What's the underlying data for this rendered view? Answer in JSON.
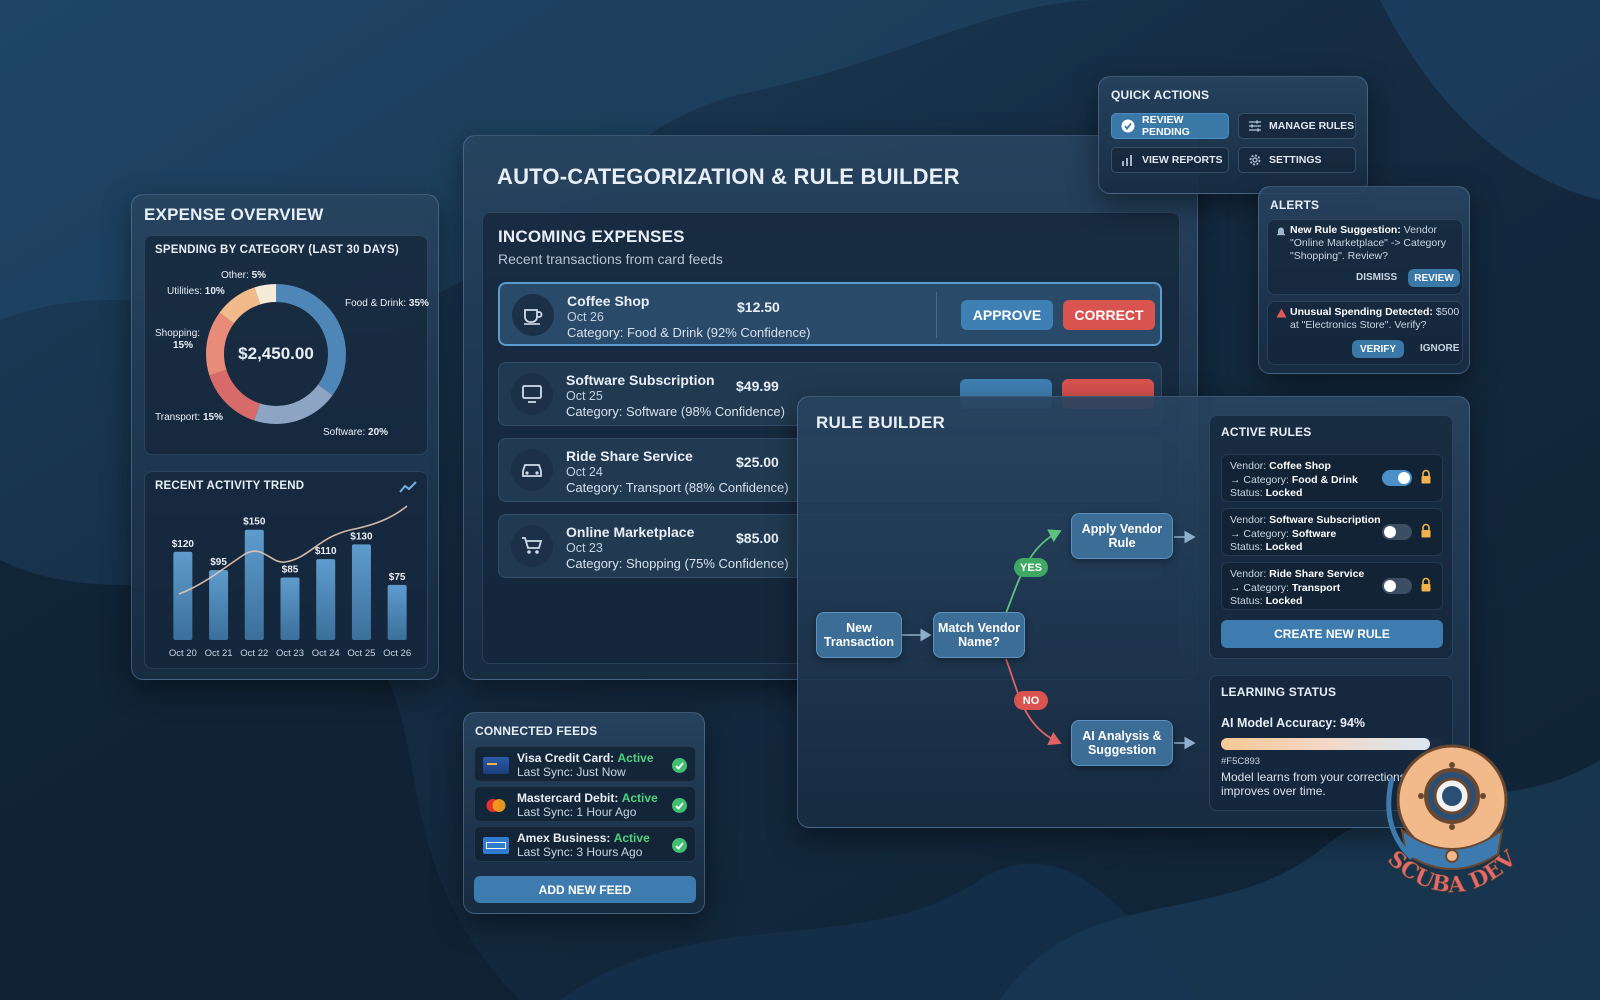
{
  "main": {
    "title": "AUTO-CATEGORIZATION & RULE BUILDER",
    "incoming": {
      "title": "INCOMING EXPENSES",
      "subtitle": "Recent transactions from card feeds",
      "approve_label": "APPROVE",
      "correct_label": "CORRECT",
      "items": [
        {
          "name": "Coffee Shop",
          "date": "Oct 26",
          "amount": "$12.50",
          "category": "Category: Food & Drink (92% Confidence)",
          "icon": "coffee-icon"
        },
        {
          "name": "Software Subscription",
          "date": "Oct 25",
          "amount": "$49.99",
          "category": "Category: Software (98% Confidence)",
          "icon": "monitor-icon"
        },
        {
          "name": "Ride Share Service",
          "date": "Oct 24",
          "amount": "$25.00",
          "category": "Category: Transport (88% Confidence)",
          "icon": "car-icon"
        },
        {
          "name": "Online Marketplace",
          "date": "Oct 23",
          "amount": "$85.00",
          "category": "Category: Shopping (75% Confidence)",
          "icon": "cart-icon"
        }
      ]
    }
  },
  "expense_overview": {
    "title": "EXPENSE OVERVIEW",
    "donut": {
      "title": "SPENDING BY CATEGORY (LAST 30 DAYS)",
      "total": "$2,450.00",
      "slices": [
        {
          "label": "Food & Drink: 35%",
          "value": 35,
          "color": "#4f86b8"
        },
        {
          "label": "Software: 20%",
          "value": 20,
          "color": "#8ea4c4"
        },
        {
          "label": "Transport: 15%",
          "value": 15,
          "color": "#d86a6a"
        },
        {
          "label": "Shopping: 15%",
          "value": 15,
          "color": "#e88b78"
        },
        {
          "label": "Utilities: 10%",
          "value": 10,
          "color": "#f2b98a"
        },
        {
          "label": "Other: 5%",
          "value": 5,
          "color": "#f6ead8"
        }
      ]
    },
    "trend": {
      "title": "RECENT ACTIVITY TREND",
      "icon": "trend-up-icon"
    }
  },
  "chart_data": [
    {
      "type": "pie",
      "title": "SPENDING BY CATEGORY (LAST 30 DAYS)",
      "categories": [
        "Food & Drink",
        "Software",
        "Transport",
        "Shopping",
        "Utilities",
        "Other"
      ],
      "values": [
        35,
        20,
        15,
        15,
        10,
        5
      ],
      "center_label": "$2,450.00"
    },
    {
      "type": "bar",
      "title": "RECENT ACTIVITY TREND",
      "categories": [
        "Oct 20",
        "Oct 21",
        "Oct 22",
        "Oct 23",
        "Oct 24",
        "Oct 25",
        "Oct 26"
      ],
      "values": [
        120,
        95,
        150,
        85,
        110,
        130,
        75
      ],
      "value_labels": [
        "$120",
        "$95",
        "$150",
        "$85",
        "$110",
        "$130",
        "$75"
      ],
      "ylim": [
        0,
        170
      ]
    }
  ],
  "quick_actions": {
    "title": "QUICK ACTIONS",
    "buttons": [
      {
        "label": "REVIEW PENDING",
        "icon": "check-circle-icon"
      },
      {
        "label": "MANAGE RULES",
        "icon": "sliders-icon"
      },
      {
        "label": "VIEW REPORTS",
        "icon": "bar-chart-icon"
      },
      {
        "label": "SETTINGS",
        "icon": "gear-icon"
      }
    ]
  },
  "alerts": {
    "title": "ALERTS",
    "items": [
      {
        "bold": "New Rule Suggestion:",
        "text": " Vendor \"Online Marketplace\" -> Category \"Shopping\". Review?",
        "secondary": "DISMISS",
        "primary": "REVIEW",
        "icon": "bell-icon"
      },
      {
        "bold": "Unusual Spending Detected:",
        "text": " $500 at \"Electronics Store\". Verify?",
        "secondary": "IGNORE",
        "primary": "VERIFY",
        "icon": "warning-icon"
      }
    ]
  },
  "rule_builder": {
    "title": "RULE BUILDER",
    "flow": {
      "start": "New Transaction",
      "decision": "Match Vendor Name?",
      "yes_label": "YES",
      "no_label": "NO",
      "yes_action": "Apply Vendor Rule",
      "no_action": "AI Analysis & Suggestion"
    },
    "active_rules": {
      "title": "ACTIVE RULES",
      "items": [
        {
          "vendor": "Coffee Shop",
          "category": "Food & Drink",
          "status": "Locked",
          "enabled": true
        },
        {
          "vendor": "Software Subscription",
          "category": "Software",
          "status": "Locked",
          "enabled": false
        },
        {
          "vendor": "Ride Share Service",
          "category": "Transport",
          "status": "Locked",
          "enabled": false
        }
      ],
      "create_label": "CREATE NEW RULE",
      "vendor_prefix": "Vendor:",
      "category_prefix": "→ Category:",
      "status_prefix": "Status:"
    },
    "learning": {
      "title": "LEARNING STATUS",
      "accuracy_label": "AI Model Accuracy: 94%",
      "accuracy": 0.94,
      "color_code": "#F5C893",
      "note": "Model learns from your corrections and improves over time."
    }
  },
  "connected_feeds": {
    "title": "CONNECTED FEEDS",
    "items": [
      {
        "name": "Visa Credit Card:",
        "status": "Active",
        "sync": "Last Sync: Just Now",
        "icon": "visa-card-icon"
      },
      {
        "name": "Mastercard Debit:",
        "status": "Active",
        "sync": "Last Sync: 1 Hour Ago",
        "icon": "mastercard-icon"
      },
      {
        "name": "Amex Business:",
        "status": "Active",
        "sync": "Last Sync: 3 Hours Ago",
        "icon": "amex-card-icon"
      }
    ],
    "add_label": "ADD NEW FEED"
  },
  "logo": {
    "text": "SCUBA DEV"
  }
}
